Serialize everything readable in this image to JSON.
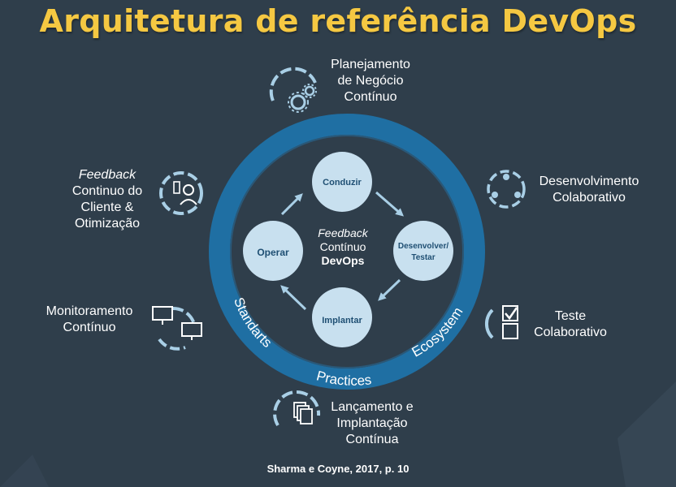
{
  "title": "Arquitetura de referência DevOps",
  "center": {
    "line1": "Feedback",
    "line2": "Contínuo",
    "line3": "DevOps"
  },
  "nodes": {
    "conduzir": "Conduzir",
    "desenvolver_line1": "Desenvolver/",
    "desenvolver_line2": "Testar",
    "implantar": "Implantar",
    "operar": "Operar"
  },
  "ring_words": {
    "standarts": "Standarts",
    "practices": "Practices",
    "ecosystem": "Ecosystem"
  },
  "outer_labels": {
    "planejamento": [
      "Planejamento",
      "de Negócio",
      "Contínuo"
    ],
    "desenvolvimento": [
      "Desenvolvimento",
      "Colaborativo"
    ],
    "teste": [
      "Teste",
      "Colaborativo"
    ],
    "lancamento": [
      "Lançamento e",
      "Implantação",
      "Contínua"
    ],
    "monitoramento": [
      "Monitoramento",
      "Contínuo"
    ],
    "feedback": [
      "Feedback",
      "Continuo do",
      "Cliente &",
      "Otimização"
    ]
  },
  "citation": "Sharma e Coyne, 2017, p. 10",
  "colors": {
    "background": "#2f3e4b",
    "title": "#f5c842",
    "ring": "#1f6fa3",
    "node_fill": "#c8e0ef",
    "node_text": "#1f4f73",
    "icon": "#a9cfe6",
    "arrow": "#a9cfe6"
  }
}
